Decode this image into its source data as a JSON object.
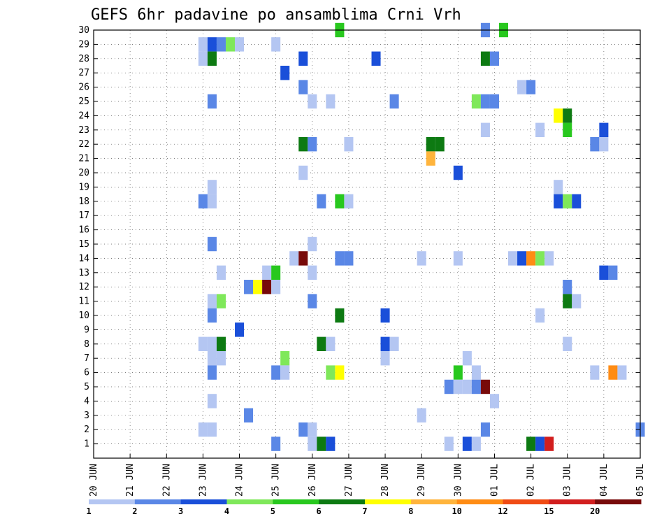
{
  "chart_data": {
    "type": "heatmap",
    "title": "GEFS 6hr padavine po ansamblima Crni Vrh",
    "xlabel": "",
    "ylabel": "",
    "x_tick_labels": [
      "20 JUN",
      "21 JUN",
      "22 JUN",
      "23 JUN",
      "24 JUN",
      "25 JUN",
      "26 JUN",
      "27 JUN",
      "28 JUN",
      "29 JUN",
      "30 JUN",
      "01 JUL",
      "02 JUL",
      "03 JUL",
      "04 JUL",
      "05 JUL"
    ],
    "y_tick_labels": [
      "1",
      "2",
      "3",
      "4",
      "5",
      "6",
      "7",
      "8",
      "9",
      "10",
      "11",
      "12",
      "13",
      "14",
      "15",
      "16",
      "17",
      "18",
      "19",
      "20",
      "21",
      "22",
      "23",
      "24",
      "25",
      "26",
      "27",
      "28",
      "29",
      "30"
    ],
    "xlim_days": [
      0,
      15
    ],
    "ylim_members": [
      0,
      30
    ],
    "grid": true,
    "colorbar": {
      "labels": [
        "1",
        "2",
        "3",
        "4",
        "5",
        "6",
        "7",
        "8",
        "10",
        "12",
        "15",
        "20"
      ],
      "colors": [
        "#b4c6f2",
        "#5a87e6",
        "#1a4fd9",
        "#7fe85a",
        "#28c81e",
        "#0d7a12",
        "#ffff00",
        "#ffb43c",
        "#ff8c14",
        "#f04b14",
        "#d21e1e",
        "#780a0a"
      ]
    },
    "cells": [
      [
        3.0,
        29,
        0
      ],
      [
        3.25,
        29,
        2
      ],
      [
        3.5,
        29,
        1
      ],
      [
        3.75,
        29,
        3
      ],
      [
        4.0,
        29,
        0
      ],
      [
        5.0,
        29,
        0
      ],
      [
        3.0,
        28,
        0
      ],
      [
        3.25,
        28,
        5
      ],
      [
        5.75,
        28,
        2
      ],
      [
        7.75,
        28,
        2
      ],
      [
        10.75,
        28,
        5
      ],
      [
        11.0,
        28,
        1
      ],
      [
        5.25,
        27,
        2
      ],
      [
        10.75,
        30,
        1
      ],
      [
        11.25,
        30,
        4
      ],
      [
        6.75,
        30,
        4
      ],
      [
        5.75,
        26,
        1
      ],
      [
        11.75,
        26,
        0
      ],
      [
        12.0,
        26,
        1
      ],
      [
        3.25,
        25,
        1
      ],
      [
        6.0,
        25,
        0
      ],
      [
        6.5,
        25,
        0
      ],
      [
        8.25,
        25,
        1
      ],
      [
        10.5,
        25,
        3
      ],
      [
        10.75,
        25,
        1
      ],
      [
        11.0,
        25,
        1
      ],
      [
        12.75,
        24,
        6
      ],
      [
        13.0,
        24,
        5
      ],
      [
        10.75,
        23,
        0
      ],
      [
        12.25,
        23,
        0
      ],
      [
        13.0,
        23,
        4
      ],
      [
        14.0,
        23,
        2
      ],
      [
        5.75,
        22,
        5
      ],
      [
        6.0,
        22,
        1
      ],
      [
        7.0,
        22,
        0
      ],
      [
        9.25,
        22,
        5
      ],
      [
        9.5,
        22,
        5
      ],
      [
        13.75,
        22,
        1
      ],
      [
        14.0,
        22,
        0
      ],
      [
        9.25,
        21,
        7
      ],
      [
        10.0,
        20,
        2
      ],
      [
        5.75,
        20,
        0
      ],
      [
        3.25,
        19,
        0
      ],
      [
        12.75,
        19,
        0
      ],
      [
        3.0,
        18,
        1
      ],
      [
        3.25,
        18,
        0
      ],
      [
        6.25,
        18,
        1
      ],
      [
        6.75,
        18,
        4
      ],
      [
        7.0,
        18,
        0
      ],
      [
        12.75,
        18,
        2
      ],
      [
        13.0,
        18,
        3
      ],
      [
        13.25,
        18,
        2
      ],
      [
        3.25,
        15,
        1
      ],
      [
        6.0,
        15,
        0
      ],
      [
        5.5,
        14,
        0
      ],
      [
        5.75,
        14,
        11
      ],
      [
        6.75,
        14,
        1
      ],
      [
        7.0,
        14,
        1
      ],
      [
        9.0,
        14,
        0
      ],
      [
        10.0,
        14,
        0
      ],
      [
        11.5,
        14,
        0
      ],
      [
        11.75,
        14,
        2
      ],
      [
        12.0,
        14,
        8
      ],
      [
        12.25,
        14,
        3
      ],
      [
        12.5,
        14,
        0
      ],
      [
        3.5,
        13,
        0
      ],
      [
        4.75,
        13,
        0
      ],
      [
        5.0,
        13,
        4
      ],
      [
        6.0,
        13,
        0
      ],
      [
        14.0,
        13,
        2
      ],
      [
        14.25,
        13,
        1
      ],
      [
        4.25,
        12,
        1
      ],
      [
        4.5,
        12,
        6
      ],
      [
        4.75,
        12,
        11
      ],
      [
        5.0,
        12,
        0
      ],
      [
        13.0,
        12,
        1
      ],
      [
        3.25,
        11,
        0
      ],
      [
        3.5,
        11,
        3
      ],
      [
        6.0,
        11,
        1
      ],
      [
        13.0,
        11,
        5
      ],
      [
        13.25,
        11,
        0
      ],
      [
        3.25,
        10,
        1
      ],
      [
        6.75,
        10,
        5
      ],
      [
        8.0,
        10,
        2
      ],
      [
        12.25,
        10,
        0
      ],
      [
        4.0,
        9,
        2
      ],
      [
        3.0,
        8,
        0
      ],
      [
        3.25,
        8,
        0
      ],
      [
        3.5,
        8,
        5
      ],
      [
        6.25,
        8,
        5
      ],
      [
        6.5,
        8,
        0
      ],
      [
        8.0,
        8,
        2
      ],
      [
        8.25,
        8,
        0
      ],
      [
        13.0,
        8,
        0
      ],
      [
        3.25,
        7,
        0
      ],
      [
        3.5,
        7,
        0
      ],
      [
        5.25,
        7,
        3
      ],
      [
        8.0,
        7,
        0
      ],
      [
        10.25,
        7,
        0
      ],
      [
        3.25,
        6,
        1
      ],
      [
        5.0,
        6,
        1
      ],
      [
        5.25,
        6,
        0
      ],
      [
        6.5,
        6,
        3
      ],
      [
        6.75,
        6,
        6
      ],
      [
        10.0,
        6,
        4
      ],
      [
        10.5,
        6,
        0
      ],
      [
        13.75,
        6,
        0
      ],
      [
        14.25,
        6,
        8
      ],
      [
        14.5,
        6,
        0
      ],
      [
        9.75,
        5,
        1
      ],
      [
        10.0,
        5,
        0
      ],
      [
        10.25,
        5,
        0
      ],
      [
        10.5,
        5,
        1
      ],
      [
        10.75,
        5,
        11
      ],
      [
        3.25,
        4,
        0
      ],
      [
        11.0,
        4,
        0
      ],
      [
        4.25,
        3,
        1
      ],
      [
        9.0,
        3,
        0
      ],
      [
        3.0,
        2,
        0
      ],
      [
        3.25,
        2,
        0
      ],
      [
        5.75,
        2,
        1
      ],
      [
        6.0,
        2,
        0
      ],
      [
        10.75,
        2,
        1
      ],
      [
        15.0,
        2,
        1
      ],
      [
        5.0,
        1,
        1
      ],
      [
        6.0,
        1,
        0
      ],
      [
        6.25,
        1,
        5
      ],
      [
        6.5,
        1,
        2
      ],
      [
        9.75,
        1,
        0
      ],
      [
        10.25,
        1,
        2
      ],
      [
        10.5,
        1,
        0
      ],
      [
        12.0,
        1,
        5
      ],
      [
        12.25,
        1,
        2
      ],
      [
        12.5,
        1,
        10
      ]
    ]
  }
}
